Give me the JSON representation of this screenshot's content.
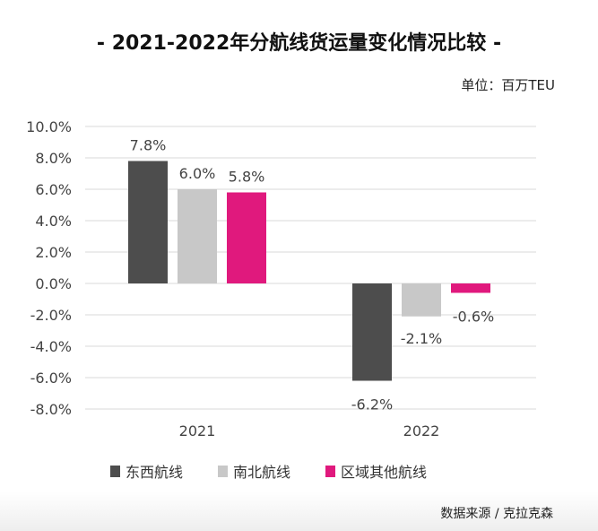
{
  "header": {
    "title": "- 2021-2022年分航线货运量变化情况比较 -",
    "unit": "单位：百万TEU"
  },
  "footer": {
    "source": "数据来源 /  克拉克森"
  },
  "chart_data": {
    "type": "bar",
    "title": "- 2021-2022年分航线货运量变化情况比较 -",
    "categories": [
      "2021",
      "2022"
    ],
    "series": [
      {
        "name": "东西航线",
        "values": [
          7.8,
          -6.2
        ],
        "labels": [
          "7.8%",
          "-6.2%"
        ],
        "color": "#4d4d4d"
      },
      {
        "name": "南北航线",
        "values": [
          6.0,
          -2.1
        ],
        "labels": [
          "6.0%",
          "-2.1%"
        ],
        "color": "#c8c8c8"
      },
      {
        "name": "区域其他航线",
        "values": [
          5.8,
          -0.6
        ],
        "labels": [
          "5.8%",
          "-0.6%"
        ],
        "color": "#e0197d"
      }
    ],
    "ylim": [
      -8.0,
      10.0
    ],
    "yticks": [
      {
        "v": 10,
        "label": "10.0%"
      },
      {
        "v": 8,
        "label": "8.0%"
      },
      {
        "v": 6,
        "label": "6.0%"
      },
      {
        "v": 4,
        "label": "4.0%"
      },
      {
        "v": 2,
        "label": "2.0%"
      },
      {
        "v": 0,
        "label": "0.0%"
      },
      {
        "v": -2,
        "label": "-2.0%"
      },
      {
        "v": -4,
        "label": "-4.0%"
      },
      {
        "v": -6,
        "label": "-6.0%"
      },
      {
        "v": -8,
        "label": "-8.0%"
      }
    ],
    "grid": true,
    "legend": "bottom"
  }
}
